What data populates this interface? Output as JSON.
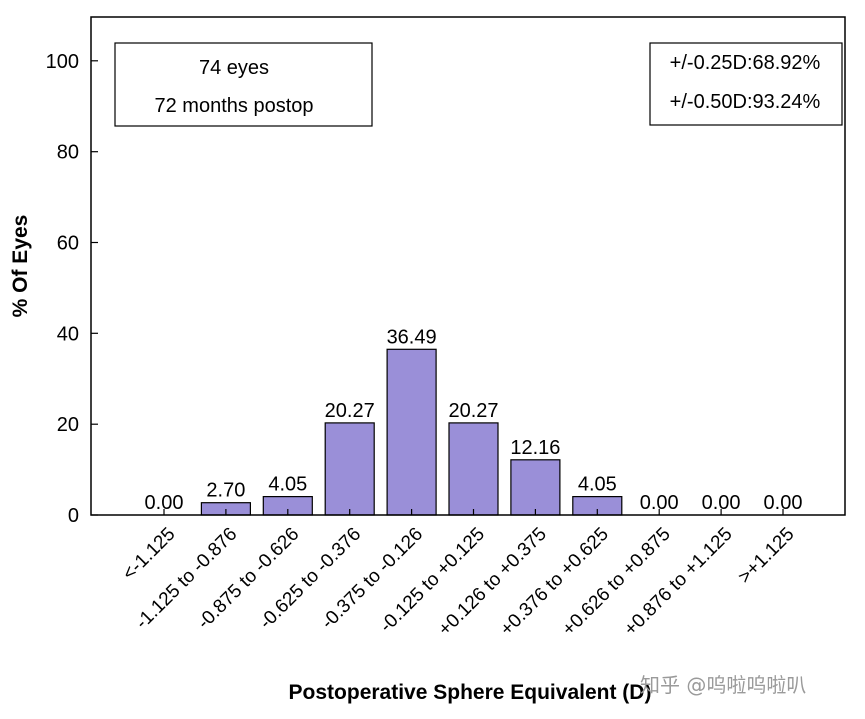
{
  "chart_data": {
    "type": "bar",
    "categories": [
      "<-1.125",
      "-1.125 to -0.876",
      "-0.875 to -0.626",
      "-0.625 to -0.376",
      "-0.375 to -0.126",
      "-0.125 to +0.125",
      "+0.126 to +0.375",
      "+0.376 to +0.625",
      "+0.626 to +0.875",
      "+0.876 to +1.125",
      ">+1.125"
    ],
    "values": [
      0.0,
      2.7,
      4.05,
      20.27,
      36.49,
      20.27,
      12.16,
      4.05,
      0.0,
      0.0,
      0.0
    ],
    "value_labels": [
      "0.00",
      "2.70",
      "4.05",
      "20.27",
      "36.49",
      "20.27",
      "12.16",
      "4.05",
      "0.00",
      "0.00",
      "0.00"
    ],
    "xlabel": "Postoperative Sphere Equivalent (D)",
    "ylabel": "% Of Eyes",
    "ylim": [
      0,
      110
    ],
    "yticks": [
      "0",
      "20",
      "40",
      "60",
      "80",
      "100"
    ],
    "bar_color": "#9a8fd8",
    "grid": false,
    "annotation_left": [
      "74 eyes",
      "72 months postop"
    ],
    "annotation_right": [
      "+/-0.25D:68.92%",
      "+/-0.50D:93.24%"
    ]
  },
  "watermark": "知乎 @呜啦呜啦叭"
}
